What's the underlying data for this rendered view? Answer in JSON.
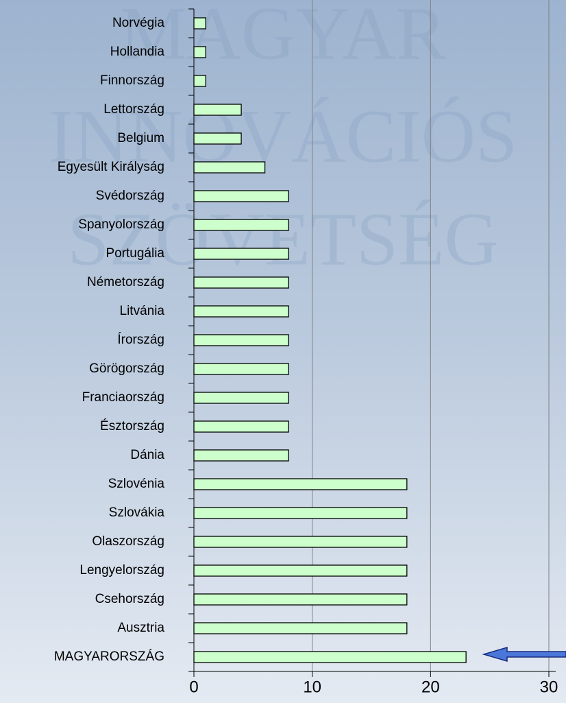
{
  "chart_data": {
    "type": "bar",
    "orientation": "horizontal",
    "watermark": [
      "MAGYAR",
      "INNOVÁCIÓS",
      "SZÖVETSÉG"
    ],
    "categories": [
      "Norvégia",
      "Hollandia",
      "Finnország",
      "Lettország",
      "Belgium",
      "Egyesült Királyság",
      "Svédország",
      "Spanyolország",
      "Portugália",
      "Németország",
      "Litvánia",
      "Írország",
      "Görögország",
      "Franciaország",
      "Észtország",
      "Dánia",
      "Szlovénia",
      "Szlovákia",
      "Olaszország",
      "Lengyelország",
      "Csehország",
      "Ausztria",
      "MAGYARORSZÁG"
    ],
    "values": [
      1,
      1,
      1,
      4,
      4,
      6,
      8,
      8,
      8,
      8,
      8,
      8,
      8,
      8,
      8,
      8,
      18,
      18,
      18,
      18,
      18,
      18,
      23
    ],
    "color": "#ccffcc",
    "xlim": [
      0,
      30
    ],
    "xticks": [
      0,
      10,
      20,
      30
    ],
    "grid": true
  }
}
